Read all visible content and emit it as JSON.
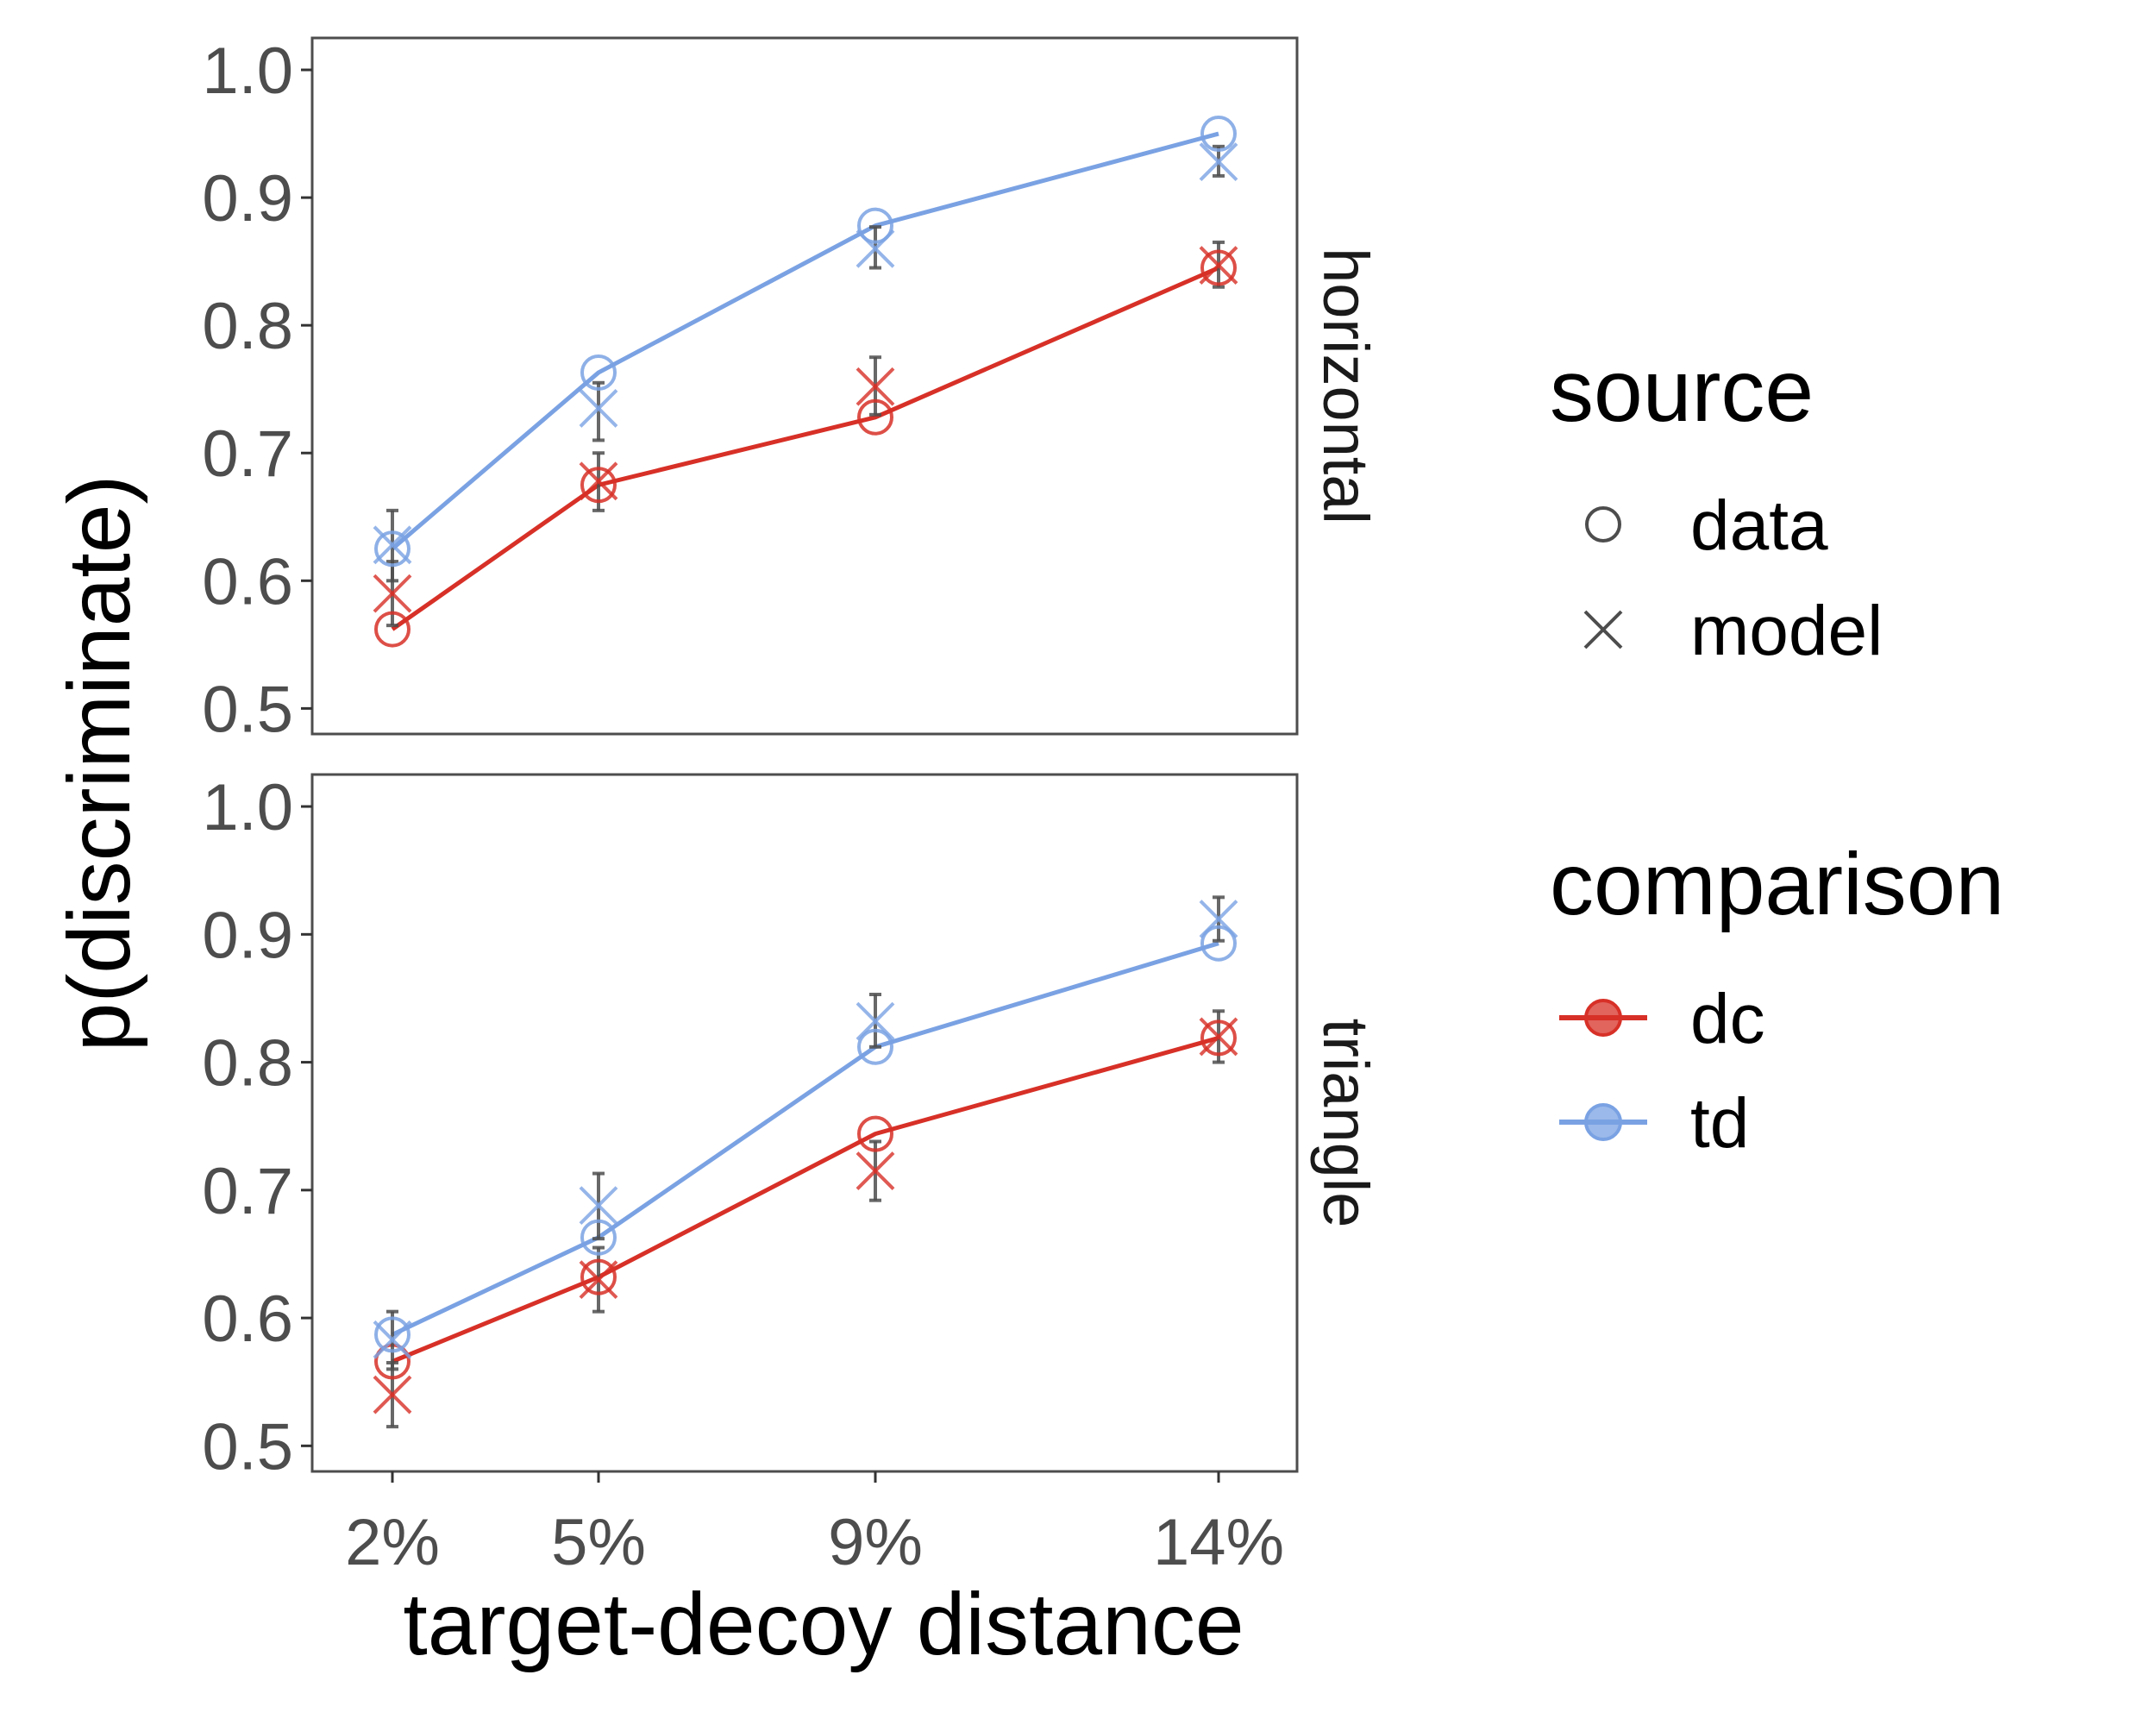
{
  "chart_data": {
    "type": "line",
    "xlabel": "target-decoy distance",
    "ylabel": "p(discriminate)",
    "categories": [
      "2%",
      "5%",
      "9%",
      "14%"
    ],
    "x": [
      2,
      5,
      9,
      14
    ],
    "ylim": [
      0.48,
      1.025
    ],
    "yticks": [
      "0.5",
      "0.6",
      "0.7",
      "0.8",
      "0.9",
      "1.0"
    ],
    "grid": false,
    "legend_position": "right",
    "colors": {
      "dc": "#d73027",
      "td": "#7aa2e3",
      "errorbar": "#4d4d4d"
    },
    "legends": {
      "source": {
        "title": "source",
        "items": [
          {
            "label": "data",
            "shape": "circle"
          },
          {
            "label": "model",
            "shape": "cross"
          }
        ]
      },
      "comparison": {
        "title": "comparison",
        "items": [
          {
            "label": "dc"
          },
          {
            "label": "td"
          }
        ]
      }
    },
    "facets": [
      {
        "strip": "horizontal",
        "series": [
          {
            "comparison": "dc",
            "data": [
              0.562,
              0.675,
              0.728,
              0.845
            ],
            "model": [
              0.59,
              0.678,
              0.752,
              0.847
            ],
            "model_ci": [
              [
                0.565,
                0.615
              ],
              [
                0.655,
                0.7
              ],
              [
                0.73,
                0.775
              ],
              [
                0.83,
                0.865
              ]
            ]
          },
          {
            "comparison": "td",
            "data": [
              0.625,
              0.763,
              0.878,
              0.95
            ],
            "model": [
              0.628,
              0.735,
              0.86,
              0.928
            ],
            "model_ci": [
              [
                0.6,
                0.655
              ],
              [
                0.71,
                0.755
              ],
              [
                0.845,
                0.877
              ],
              [
                0.917,
                0.94
              ]
            ]
          }
        ]
      },
      {
        "strip": "triangle",
        "series": [
          {
            "comparison": "dc",
            "data": [
              0.566,
              0.632,
              0.744,
              0.819
            ],
            "model": [
              0.54,
              0.63,
              0.715,
              0.82
            ],
            "model_ci": [
              [
                0.515,
                0.565
              ],
              [
                0.605,
                0.655
              ],
              [
                0.692,
                0.738
              ],
              [
                0.8,
                0.84
              ]
            ]
          },
          {
            "comparison": "td",
            "data": [
              0.587,
              0.663,
              0.812,
              0.893
            ],
            "model": [
              0.583,
              0.688,
              0.832,
              0.912
            ],
            "model_ci": [
              [
                0.56,
                0.605
              ],
              [
                0.662,
                0.713
              ],
              [
                0.812,
                0.853
              ],
              [
                0.895,
                0.929
              ]
            ]
          }
        ]
      }
    ]
  }
}
